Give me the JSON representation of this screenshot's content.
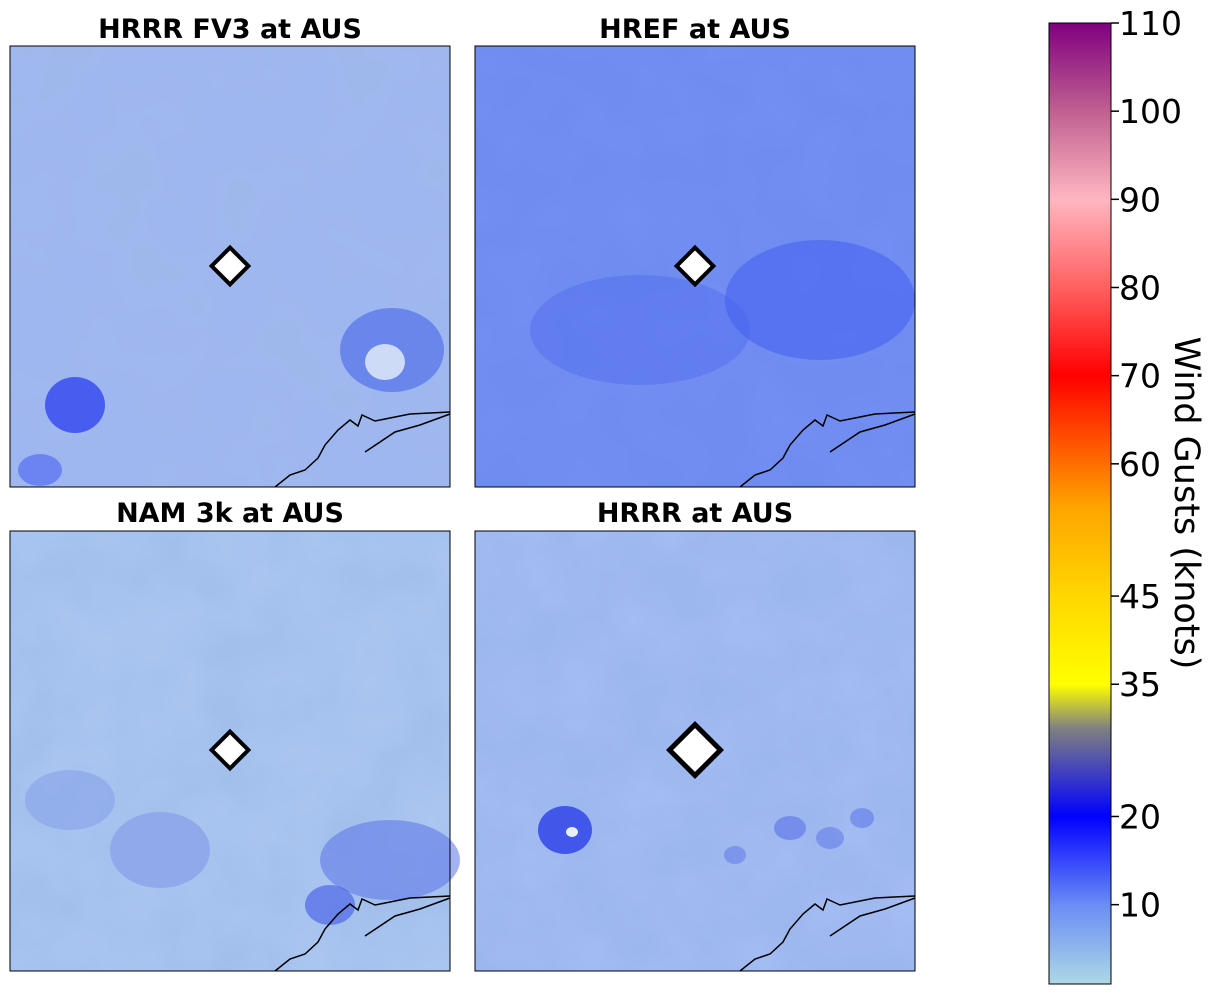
{
  "chart_data": {
    "type": "heatmap",
    "panels": [
      {
        "title": "HRRR FV3 at AUS",
        "base_color": "#9fb8ec"
      },
      {
        "title": "HREF at AUS",
        "base_color": "#6f8cf0"
      },
      {
        "title": "NAM 3k at AUS",
        "base_color": "#a2bfec"
      },
      {
        "title": "HRRR at AUS",
        "base_color": "#9cb6ee"
      }
    ],
    "colorbar": {
      "label": "Wind Gusts (knots)",
      "ticks": [
        "10",
        "20",
        "35",
        "45",
        "60",
        "70",
        "80",
        "90",
        "100",
        "110"
      ],
      "tick_values": [
        10,
        20,
        35,
        45,
        60,
        70,
        80,
        90,
        100,
        110
      ],
      "range": [
        1,
        110
      ],
      "stops": [
        {
          "value": 1,
          "color": "#add8e6"
        },
        {
          "value": 10,
          "color": "#6a8cf4"
        },
        {
          "value": 20,
          "color": "#0000ff"
        },
        {
          "value": 30,
          "color": "#808080"
        },
        {
          "value": 35,
          "color": "#ffff00"
        },
        {
          "value": 45,
          "color": "#ffd700"
        },
        {
          "value": 55,
          "color": "#ffa500"
        },
        {
          "value": 70,
          "color": "#ff0000"
        },
        {
          "value": 80,
          "color": "#ff6060"
        },
        {
          "value": 90,
          "color": "#ffb6c1"
        },
        {
          "value": 100,
          "color": "#c06090"
        },
        {
          "value": 110,
          "color": "#800080"
        }
      ]
    },
    "station": "AUS"
  }
}
